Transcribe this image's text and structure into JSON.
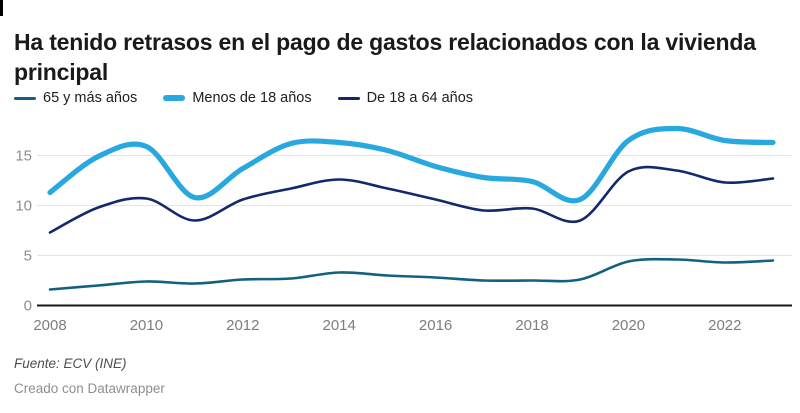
{
  "header": {
    "title": "Ha tenido retrasos en el pago de gastos relacionados con la vivienda principal"
  },
  "chart_data": {
    "type": "line",
    "x": [
      2008,
      2009,
      2010,
      2011,
      2012,
      2013,
      2014,
      2015,
      2016,
      2017,
      2018,
      2019,
      2020,
      2021,
      2022,
      2023
    ],
    "series": [
      {
        "name": "65 y más años",
        "color": "#14607f",
        "stroke_width": 2.6,
        "values": [
          1.6,
          2.0,
          2.4,
          2.2,
          2.6,
          2.7,
          3.3,
          3.0,
          2.8,
          2.5,
          2.5,
          2.6,
          4.4,
          4.6,
          4.3,
          4.5
        ]
      },
      {
        "name": "Menos de 18 años",
        "color": "#29a8e0",
        "stroke_width": 5.2,
        "values": [
          11.3,
          14.9,
          15.9,
          10.8,
          13.7,
          16.2,
          16.3,
          15.5,
          13.9,
          12.8,
          12.4,
          10.6,
          16.5,
          17.7,
          16.5,
          16.3
        ]
      },
      {
        "name": "De 18 a 64 años",
        "color": "#12296b",
        "stroke_width": 2.6,
        "values": [
          7.3,
          9.8,
          10.7,
          8.5,
          10.6,
          11.7,
          12.6,
          11.7,
          10.6,
          9.5,
          9.7,
          8.5,
          13.4,
          13.5,
          12.3,
          12.7
        ]
      }
    ],
    "title": "Ha tenido retrasos en el pago de gastos relacionados con la vivienda principal",
    "xlabel": "",
    "ylabel": "",
    "ylim": [
      0,
      18.5
    ],
    "yticks": [
      0,
      5,
      10,
      15
    ],
    "xticks": [
      2008,
      2010,
      2012,
      2014,
      2016,
      2018,
      2020,
      2022
    ],
    "grid": true,
    "legend_position": "top"
  },
  "legend_order": [
    0,
    1,
    2
  ],
  "axis_colors": {
    "y_tick_label": "#8e8e8e",
    "x_tick_label": "#7d7d7d",
    "grid_line": "#e5e5e5",
    "baseline": "#18181b"
  },
  "footer": {
    "source": "Fuente: ECV (INE)",
    "credit": "Creado con Datawrapper"
  }
}
